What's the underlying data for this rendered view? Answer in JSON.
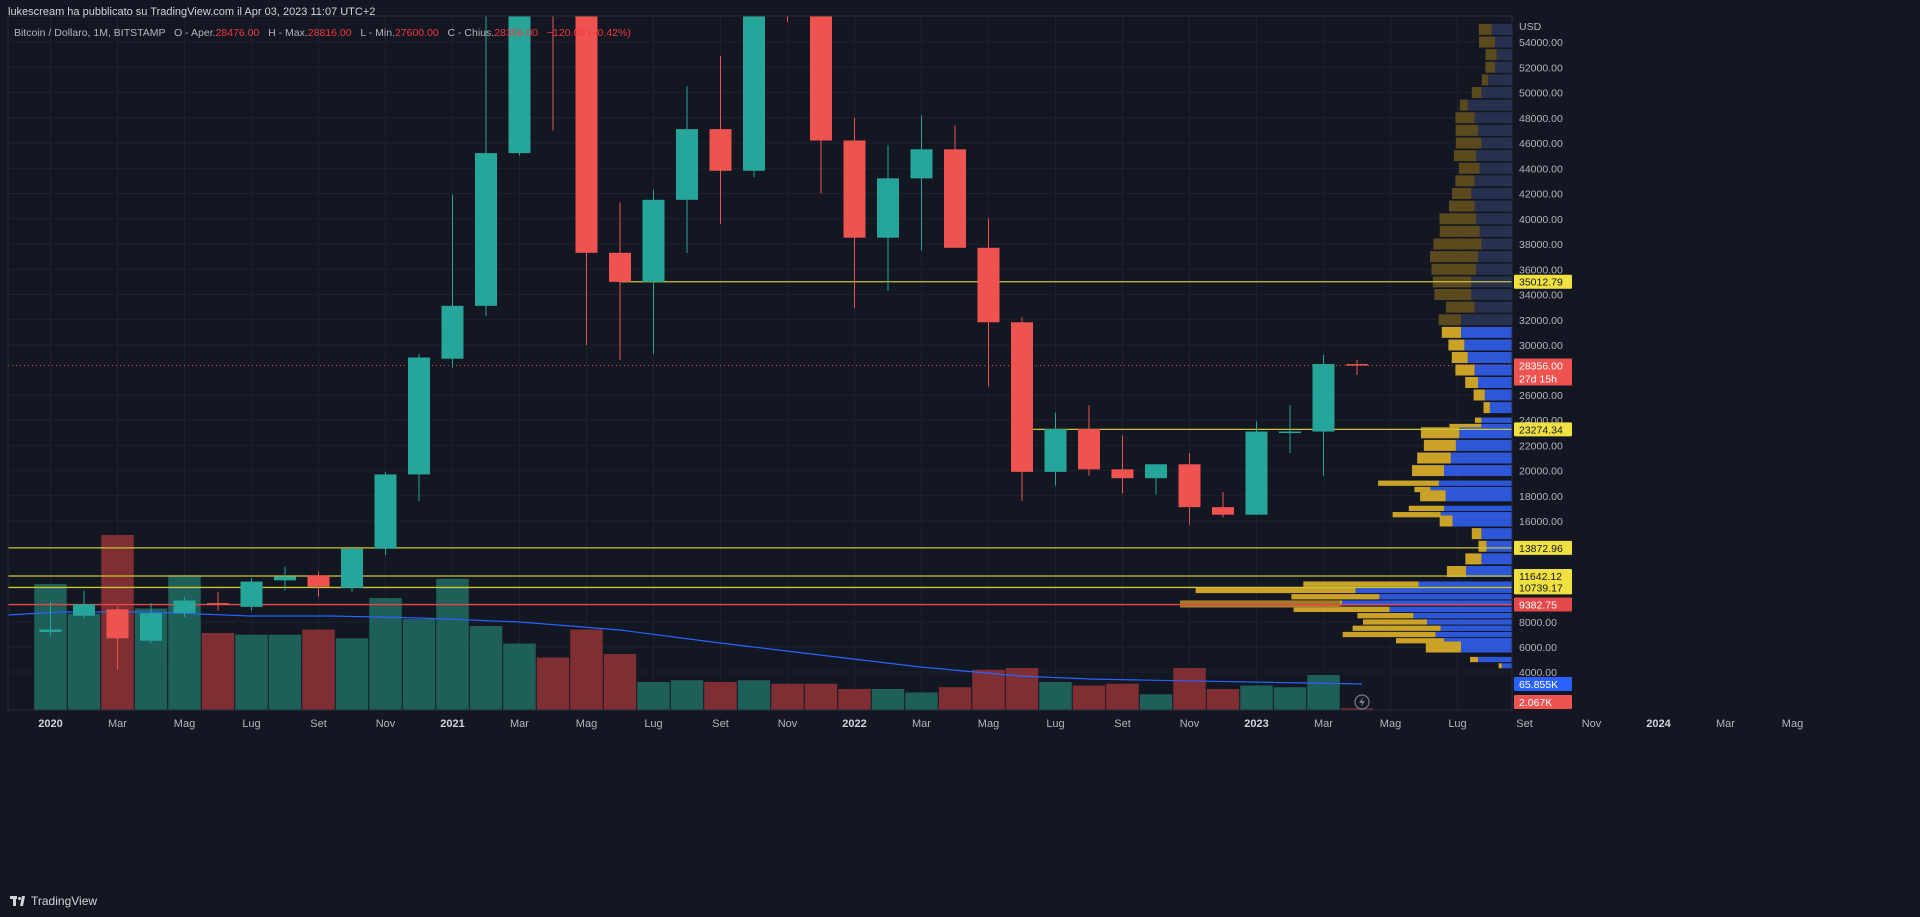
{
  "header": {
    "published_by": "lukescream ha pubblicato su TradingView.com il Apr 03, 2023 11:07 UTC+2"
  },
  "legend": {
    "symbol": "Bitcoin / Dollaro, 1M, BITSTAMP",
    "o_label": "O - Aper.",
    "o_value": "28476.00",
    "h_label": "H - Max.",
    "h_value": "28816.00",
    "l_label": "L - Min.",
    "l_value": "27600.00",
    "c_label": "C - Chius.",
    "c_value": "28356.00",
    "change": "−120.00 (−0.42%)"
  },
  "footer": {
    "brand": "TradingView"
  },
  "colors": {
    "background": "#131722",
    "up": "#26a69a",
    "down": "#ef5350",
    "vol_up": "#1f5f59",
    "vol_down": "#7f2f33",
    "hline": "#c9c43a",
    "red_line": "#e54848",
    "ma_line": "#2962ff",
    "vp_blue": "#2e5be0",
    "vp_gold": "#c9a227"
  },
  "chart_data": {
    "type": "candlestick",
    "currency_label": "USD",
    "y_ticks": [
      "54000.00",
      "52000.00",
      "50000.00",
      "48000.00",
      "46000.00",
      "44000.00",
      "42000.00",
      "40000.00",
      "38000.00",
      "36000.00",
      "34000.00",
      "32000.00",
      "30000.00",
      "26000.00",
      "24000.00",
      "22000.00",
      "20000.00",
      "18000.00",
      "16000.00",
      "8000.00",
      "6000.00",
      "4000.00"
    ],
    "y_tick_values": [
      54000,
      52000,
      50000,
      48000,
      46000,
      44000,
      42000,
      40000,
      38000,
      36000,
      34000,
      32000,
      30000,
      26000,
      24000,
      22000,
      20000,
      18000,
      16000,
      8000,
      6000,
      4000
    ],
    "x_labels": [
      "2020",
      "Mar",
      "Mag",
      "Lug",
      "Set",
      "Nov",
      "2021",
      "Mar",
      "Mag",
      "Lug",
      "Set",
      "Nov",
      "2022",
      "Mar",
      "Mag",
      "Lug",
      "Set",
      "Nov",
      "2023",
      "Mar",
      "Mag",
      "Lug",
      "Set",
      "Nov",
      "2024",
      "Mar",
      "Mag"
    ],
    "x_label_index": [
      0,
      2,
      4,
      6,
      8,
      10,
      12,
      14,
      16,
      18,
      20,
      22,
      24,
      26,
      28,
      30,
      32,
      34,
      36,
      38,
      40,
      42,
      44,
      46,
      48,
      50,
      52
    ],
    "candles": [
      {
        "o": 7200,
        "h": 9600,
        "l": 6900,
        "c": 7400
      },
      {
        "o": 8500,
        "h": 10500,
        "l": 8300,
        "c": 9400
      },
      {
        "o": 9000,
        "h": 9200,
        "l": 4200,
        "c": 6700
      },
      {
        "o": 6500,
        "h": 9500,
        "l": 6300,
        "c": 8700
      },
      {
        "o": 8700,
        "h": 10000,
        "l": 8400,
        "c": 9700
      },
      {
        "o": 9500,
        "h": 10400,
        "l": 8900,
        "c": 9350
      },
      {
        "o": 9200,
        "h": 11500,
        "l": 8900,
        "c": 11200
      },
      {
        "o": 11300,
        "h": 12400,
        "l": 10500,
        "c": 11600
      },
      {
        "o": 11700,
        "h": 12000,
        "l": 10000,
        "c": 10800
      },
      {
        "o": 10700,
        "h": 14000,
        "l": 10400,
        "c": 13800
      },
      {
        "o": 13800,
        "h": 19900,
        "l": 13300,
        "c": 19700
      },
      {
        "o": 19700,
        "h": 29300,
        "l": 17600,
        "c": 29000
      },
      {
        "o": 28900,
        "h": 41900,
        "l": 28200,
        "c": 33100
      },
      {
        "o": 33100,
        "h": 58300,
        "l": 32300,
        "c": 45200
      },
      {
        "o": 45200,
        "h": 61800,
        "l": 45000,
        "c": 58800
      },
      {
        "o": 58800,
        "h": 64800,
        "l": 47000,
        "c": 57700
      },
      {
        "o": 57700,
        "h": 59500,
        "l": 30000,
        "c": 37300
      },
      {
        "o": 37300,
        "h": 41300,
        "l": 28800,
        "c": 35000
      },
      {
        "o": 35000,
        "h": 42300,
        "l": 29300,
        "c": 41500
      },
      {
        "o": 41500,
        "h": 50500,
        "l": 37300,
        "c": 47100
      },
      {
        "o": 47100,
        "h": 52900,
        "l": 39600,
        "c": 43800
      },
      {
        "o": 43800,
        "h": 61500,
        "l": 43300,
        "c": 61300
      },
      {
        "o": 61300,
        "h": 69000,
        "l": 55600,
        "c": 57000
      },
      {
        "o": 57000,
        "h": 59200,
        "l": 42000,
        "c": 46200
      },
      {
        "o": 46200,
        "h": 48000,
        "l": 32900,
        "c": 38500
      },
      {
        "o": 38500,
        "h": 45800,
        "l": 34300,
        "c": 43200
      },
      {
        "o": 43200,
        "h": 48200,
        "l": 37500,
        "c": 45500
      },
      {
        "o": 45500,
        "h": 47400,
        "l": 37700,
        "c": 37700
      },
      {
        "o": 37700,
        "h": 40000,
        "l": 26700,
        "c": 31800
      },
      {
        "o": 31800,
        "h": 32200,
        "l": 17600,
        "c": 19900
      },
      {
        "o": 19900,
        "h": 24600,
        "l": 18800,
        "c": 23300
      },
      {
        "o": 23300,
        "h": 25200,
        "l": 19600,
        "c": 20100
      },
      {
        "o": 20100,
        "h": 22800,
        "l": 18200,
        "c": 19400
      },
      {
        "o": 19400,
        "h": 20500,
        "l": 18100,
        "c": 20500
      },
      {
        "o": 20500,
        "h": 21400,
        "l": 15700,
        "c": 17100
      },
      {
        "o": 17100,
        "h": 18300,
        "l": 16300,
        "c": 16500
      },
      {
        "o": 16500,
        "h": 23900,
        "l": 16500,
        "c": 23100
      },
      {
        "o": 23100,
        "h": 25200,
        "l": 21400,
        "c": 23100
      },
      {
        "o": 23100,
        "h": 29200,
        "l": 19600,
        "c": 28476
      },
      {
        "o": 28476,
        "h": 28816,
        "l": 27600,
        "c": 28356
      }
    ],
    "volumes": [
      0.72,
      0.55,
      1.0,
      0.58,
      0.77,
      0.44,
      0.43,
      0.43,
      0.46,
      0.41,
      0.64,
      0.52,
      0.75,
      0.48,
      0.38,
      0.3,
      0.46,
      0.32,
      0.16,
      0.17,
      0.16,
      0.17,
      0.15,
      0.15,
      0.12,
      0.12,
      0.1,
      0.13,
      0.23,
      0.24,
      0.16,
      0.14,
      0.15,
      0.09,
      0.24,
      0.12,
      0.14,
      0.13,
      0.2,
      0.01
    ],
    "horizontal_levels": [
      {
        "label": "35012.79",
        "value": 35012.79,
        "color": "#c9c43a",
        "start_index": 17
      },
      {
        "label": "23274.34",
        "value": 23274.34,
        "color": "#c9c43a",
        "start_index": 29
      },
      {
        "label": "13872.96",
        "value": 13872.96,
        "color": "#c9c43a",
        "start_index": -1
      },
      {
        "label": "11642.12",
        "value": 11642.12,
        "color": "#c9c43a",
        "start_index": -1
      },
      {
        "label": "10739.17",
        "value": 10739.17,
        "color": "#c9c43a",
        "start_index": -1
      },
      {
        "label": "9382.75",
        "value": 9382.75,
        "color": "#e54848",
        "start_index": -1
      }
    ],
    "last_price": {
      "label": "28356.00",
      "countdown": "27d 15h",
      "value": 28356
    },
    "volume_ma_label": "65.855K",
    "volume_label": "2.067K",
    "volume_profile": [
      {
        "p": 55000,
        "b": 0.12,
        "g": 0.08
      },
      {
        "p": 54000,
        "b": 0.1,
        "g": 0.1
      },
      {
        "p": 53000,
        "b": 0.09,
        "g": 0.07
      },
      {
        "p": 52000,
        "b": 0.1,
        "g": 0.06
      },
      {
        "p": 51000,
        "b": 0.14,
        "g": 0.04
      },
      {
        "p": 50000,
        "b": 0.18,
        "g": 0.06
      },
      {
        "p": 49000,
        "b": 0.26,
        "g": 0.05
      },
      {
        "p": 48000,
        "b": 0.22,
        "g": 0.12
      },
      {
        "p": 47000,
        "b": 0.2,
        "g": 0.14
      },
      {
        "p": 46000,
        "b": 0.18,
        "g": 0.16
      },
      {
        "p": 45000,
        "b": 0.21,
        "g": 0.14
      },
      {
        "p": 44000,
        "b": 0.19,
        "g": 0.13
      },
      {
        "p": 43000,
        "b": 0.22,
        "g": 0.12
      },
      {
        "p": 42000,
        "b": 0.24,
        "g": 0.12
      },
      {
        "p": 41000,
        "b": 0.22,
        "g": 0.16
      },
      {
        "p": 40000,
        "b": 0.21,
        "g": 0.23
      },
      {
        "p": 39000,
        "b": 0.19,
        "g": 0.25
      },
      {
        "p": 38000,
        "b": 0.18,
        "g": 0.3
      },
      {
        "p": 37000,
        "b": 0.2,
        "g": 0.3
      },
      {
        "p": 36000,
        "b": 0.21,
        "g": 0.28
      },
      {
        "p": 35000,
        "b": 0.24,
        "g": 0.24
      },
      {
        "p": 34000,
        "b": 0.24,
        "g": 0.23
      },
      {
        "p": 33000,
        "b": 0.22,
        "g": 0.18
      },
      {
        "p": 32000,
        "b": 0.3,
        "g": 0.14
      },
      {
        "p": 31000,
        "b": 0.3,
        "g": 0.12
      },
      {
        "p": 30000,
        "b": 0.28,
        "g": 0.1
      },
      {
        "p": 29000,
        "b": 0.26,
        "g": 0.1
      },
      {
        "p": 28000,
        "b": 0.22,
        "g": 0.12
      },
      {
        "p": 27000,
        "b": 0.2,
        "g": 0.08
      },
      {
        "p": 26000,
        "b": 0.16,
        "g": 0.07
      },
      {
        "p": 25000,
        "b": 0.13,
        "g": 0.04
      },
      {
        "p": 24000,
        "b": 0.18,
        "g": 0.04
      },
      {
        "p": 23500,
        "b": 0.18,
        "g": 0.2
      },
      {
        "p": 23000,
        "b": 0.31,
        "g": 0.24
      },
      {
        "p": 22000,
        "b": 0.33,
        "g": 0.2
      },
      {
        "p": 21000,
        "b": 0.36,
        "g": 0.21
      },
      {
        "p": 20000,
        "b": 0.4,
        "g": 0.2
      },
      {
        "p": 19000,
        "b": 0.43,
        "g": 0.38
      },
      {
        "p": 18500,
        "b": 0.48,
        "g": 0.1
      },
      {
        "p": 18000,
        "b": 0.39,
        "g": 0.16
      },
      {
        "p": 17000,
        "b": 0.4,
        "g": 0.22
      },
      {
        "p": 16500,
        "b": 0.42,
        "g": 0.3
      },
      {
        "p": 16000,
        "b": 0.35,
        "g": 0.08
      },
      {
        "p": 15000,
        "b": 0.18,
        "g": 0.06
      },
      {
        "p": 14000,
        "b": 0.15,
        "g": 0.05
      },
      {
        "p": 13000,
        "b": 0.18,
        "g": 0.1
      },
      {
        "p": 12000,
        "b": 0.27,
        "g": 0.12
      },
      {
        "p": 11000,
        "b": 0.55,
        "g": 0.72
      },
      {
        "p": 10500,
        "b": 0.92,
        "g": 1.0
      },
      {
        "p": 10000,
        "b": 0.78,
        "g": 0.55
      },
      {
        "p": 9500,
        "b": 1.0,
        "g": 1.0
      },
      {
        "p": 9000,
        "b": 0.72,
        "g": 0.6
      },
      {
        "p": 8500,
        "b": 0.58,
        "g": 0.35
      },
      {
        "p": 8000,
        "b": 0.5,
        "g": 0.4
      },
      {
        "p": 7500,
        "b": 0.42,
        "g": 0.55
      },
      {
        "p": 7000,
        "b": 0.45,
        "g": 0.58
      },
      {
        "p": 6500,
        "b": 0.4,
        "g": 0.3
      },
      {
        "p": 6000,
        "b": 0.3,
        "g": 0.22
      },
      {
        "p": 5000,
        "b": 0.2,
        "g": 0.05
      },
      {
        "p": 4500,
        "b": 0.06,
        "g": 0.02
      }
    ]
  }
}
